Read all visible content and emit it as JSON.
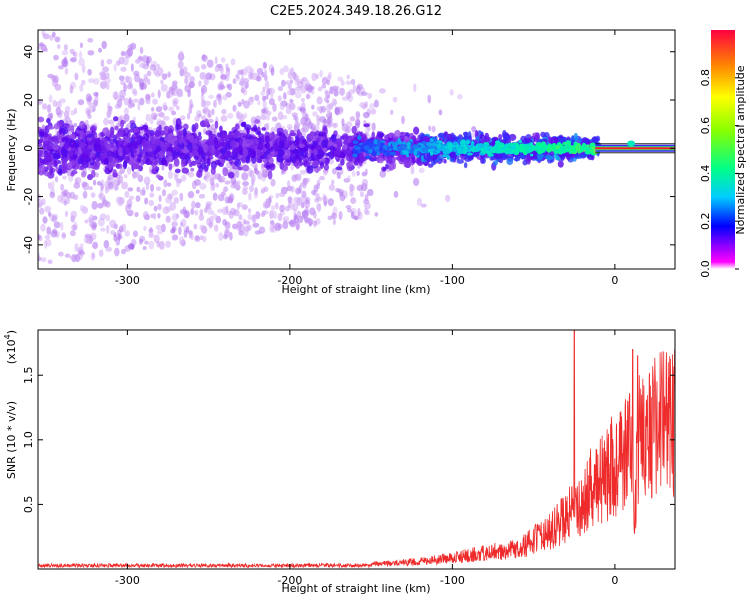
{
  "title": "C2E5.2024.349.18.26.G12",
  "chart_data": [
    {
      "type": "heatmap",
      "xlabel": "Height of straight line (km)",
      "ylabel": "Frequency (Hz)",
      "xlim": [
        -355,
        37
      ],
      "ylim": [
        -50,
        49
      ],
      "xticks": [
        -300,
        -200,
        -100,
        0
      ],
      "xtick_labels": [
        "-300",
        "-200",
        "-100",
        "0"
      ],
      "yticks": [
        -40,
        -20,
        0,
        20,
        40
      ],
      "ytick_labels": [
        "-40",
        "-20",
        "0",
        "20",
        "40"
      ],
      "colorbar": {
        "label": "Normalized spectral amplitude",
        "range": [
          0,
          1
        ],
        "ticks": [
          0,
          0.2,
          0.4,
          0.6,
          0.8
        ],
        "tick_labels": [
          "0.0",
          "0.2",
          "0.4",
          "0.6",
          "0.8"
        ]
      },
      "ridge": {
        "freq_center": 0,
        "peak_amplitude_height": 37,
        "note_color_high": "#ff0000"
      }
    },
    {
      "type": "line",
      "xlabel": "Height of straight line (km)",
      "ylabel": "SNR (10 * v/v)",
      "y_scale_label": "(x10",
      "y_scale_exp": "4",
      "xlim": [
        -355,
        37
      ],
      "ylim": [
        0,
        1.85
      ],
      "xticks": [
        -300,
        -200,
        -100,
        0
      ],
      "xtick_labels": [
        "-300",
        "-200",
        "-100",
        "0"
      ],
      "yticks": [
        0.5,
        1.0,
        1.5
      ],
      "ytick_labels": [
        "0.5",
        "1.0",
        "1.5"
      ],
      "color": "#ee2a2a",
      "envelope": {
        "x": [
          -355,
          -200,
          -150,
          -120,
          -100,
          -80,
          -60,
          -50,
          -40,
          -30,
          -25,
          -20,
          -15,
          -10,
          -5,
          0,
          5,
          10,
          12,
          15,
          20,
          25,
          30,
          37
        ],
        "y": [
          0.02,
          0.03,
          0.05,
          0.08,
          0.12,
          0.17,
          0.22,
          0.3,
          0.42,
          0.55,
          0.62,
          0.7,
          0.85,
          0.95,
          1.05,
          1.1,
          1.2,
          1.3,
          0.6,
          1.4,
          1.45,
          1.52,
          1.56,
          1.6
        ]
      },
      "spikes": [
        {
          "x": -25,
          "y": 1.85
        },
        {
          "x": 11,
          "y": 1.7
        },
        {
          "x": 14,
          "y": 1.65
        }
      ]
    }
  ]
}
